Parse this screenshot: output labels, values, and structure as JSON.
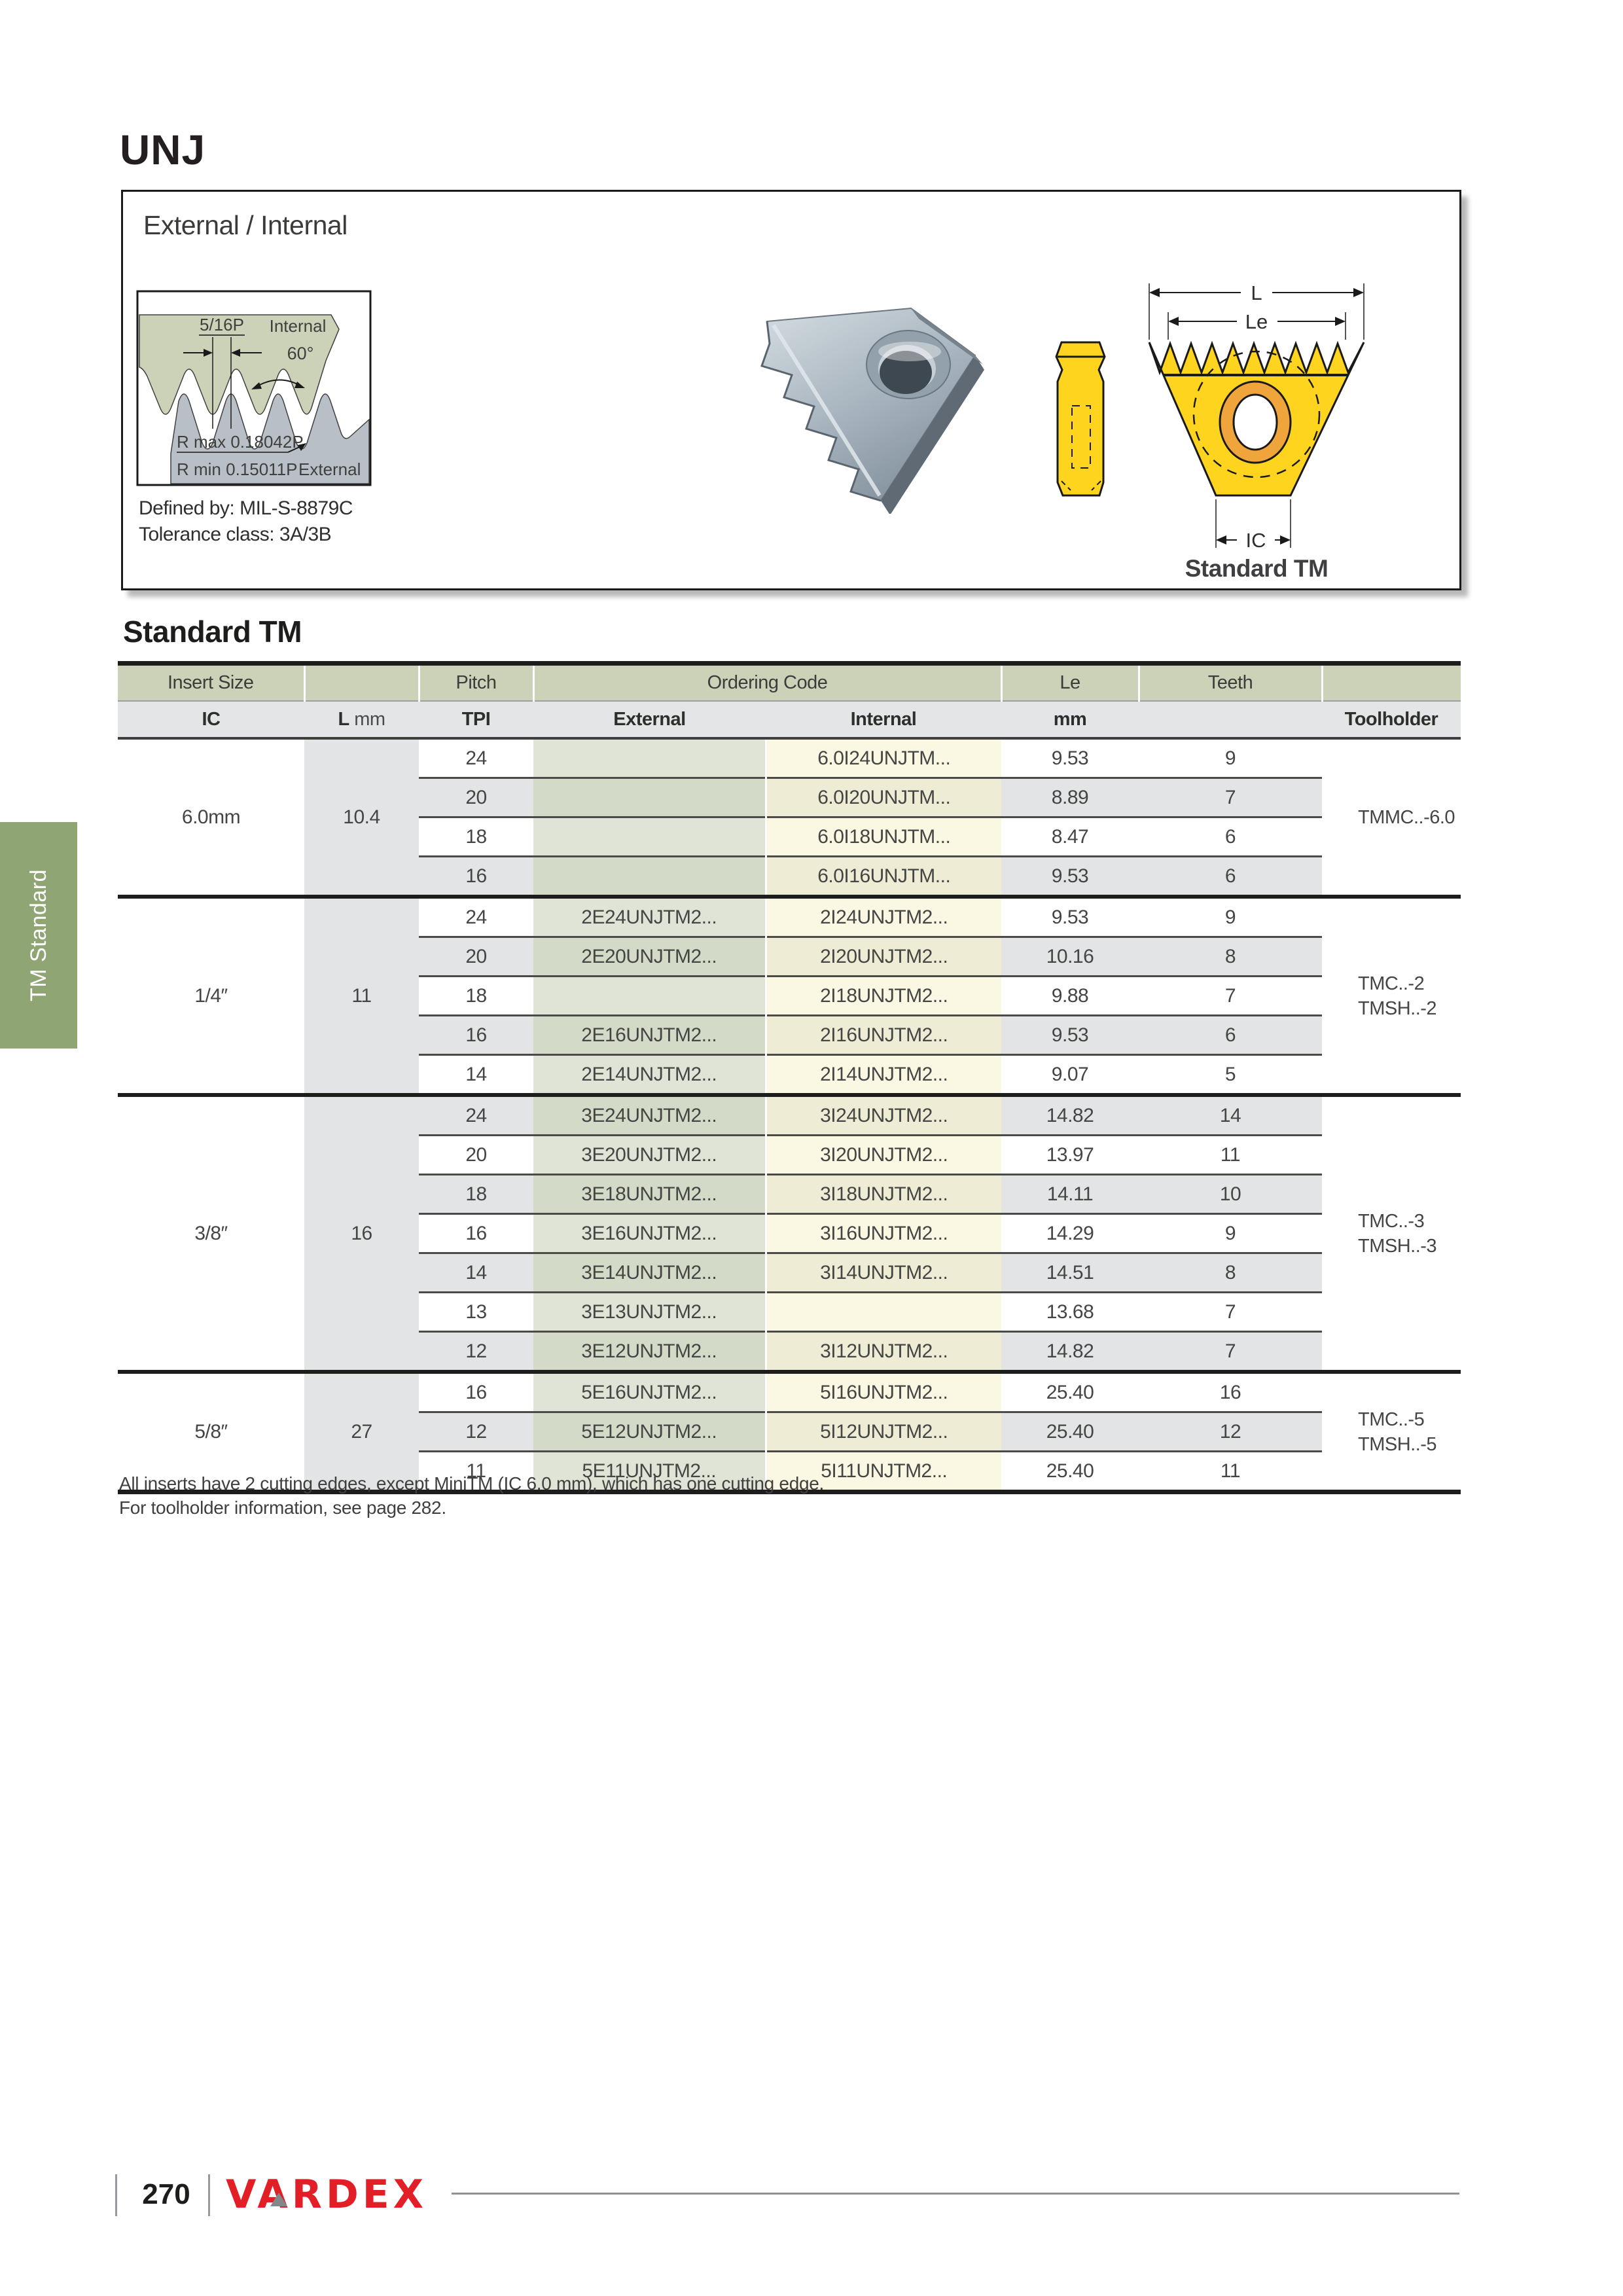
{
  "page": {
    "title": "UNJ"
  },
  "sidebar_tab": "TM Standard",
  "top_box": {
    "heading": "External / Internal",
    "defined_by": "Defined by: MIL-S-8879C",
    "tolerance": "Tolerance class: 3A/3B",
    "figure_label": "Standard TM",
    "drawing_labels": {
      "pitch": "5/16P",
      "internal": "Internal",
      "angle": "60°",
      "rmax": "R max 0.18042P",
      "rmin": "R min 0.15011P",
      "external": "External"
    },
    "dims": {
      "l": "L",
      "le": "Le",
      "ic": "IC"
    }
  },
  "section_title": "Standard TM",
  "table": {
    "header1": {
      "insert_size": "Insert Size",
      "pitch": "Pitch",
      "ordering_code": "Ordering Code",
      "le": "Le",
      "teeth": "Teeth"
    },
    "header2": {
      "ic": "IC",
      "l": "L",
      "l_unit": "mm",
      "tpi": "TPI",
      "external": "External",
      "internal": "Internal",
      "mm": "mm",
      "toolholder": "Toolholder"
    },
    "groups": [
      {
        "ic": "6.0mm",
        "l": "10.4",
        "toolholder": [
          "TMMC..-6.0"
        ],
        "rows": [
          {
            "tpi": "24",
            "external": "",
            "internal": "6.0I24UNJTM...",
            "le": "9.53",
            "teeth": "9"
          },
          {
            "tpi": "20",
            "external": "",
            "internal": "6.0I20UNJTM...",
            "le": "8.89",
            "teeth": "7"
          },
          {
            "tpi": "18",
            "external": "",
            "internal": "6.0I18UNJTM...",
            "le": "8.47",
            "teeth": "6"
          },
          {
            "tpi": "16",
            "external": "",
            "internal": "6.0I16UNJTM...",
            "le": "9.53",
            "teeth": "6"
          }
        ]
      },
      {
        "ic": "1/4″",
        "l": "11",
        "toolholder": [
          "TMC..-2",
          "TMSH..-2"
        ],
        "rows": [
          {
            "tpi": "24",
            "external": "2E24UNJTM2...",
            "internal": "2I24UNJTM2...",
            "le": "9.53",
            "teeth": "9"
          },
          {
            "tpi": "20",
            "external": "2E20UNJTM2...",
            "internal": "2I20UNJTM2...",
            "le": "10.16",
            "teeth": "8"
          },
          {
            "tpi": "18",
            "external": "",
            "internal": "2I18UNJTM2...",
            "le": "9.88",
            "teeth": "7"
          },
          {
            "tpi": "16",
            "external": "2E16UNJTM2...",
            "internal": "2I16UNJTM2...",
            "le": "9.53",
            "teeth": "6"
          },
          {
            "tpi": "14",
            "external": "2E14UNJTM2...",
            "internal": "2I14UNJTM2...",
            "le": "9.07",
            "teeth": "5"
          }
        ]
      },
      {
        "ic": "3/8″",
        "l": "16",
        "toolholder": [
          "TMC..-3",
          "TMSH..-3"
        ],
        "rows": [
          {
            "tpi": "24",
            "external": "3E24UNJTM2...",
            "internal": "3I24UNJTM2...",
            "le": "14.82",
            "teeth": "14"
          },
          {
            "tpi": "20",
            "external": "3E20UNJTM2...",
            "internal": "3I20UNJTM2...",
            "le": "13.97",
            "teeth": "11"
          },
          {
            "tpi": "18",
            "external": "3E18UNJTM2...",
            "internal": "3I18UNJTM2...",
            "le": "14.11",
            "teeth": "10"
          },
          {
            "tpi": "16",
            "external": "3E16UNJTM2...",
            "internal": "3I16UNJTM2...",
            "le": "14.29",
            "teeth": "9"
          },
          {
            "tpi": "14",
            "external": "3E14UNJTM2...",
            "internal": "3I14UNJTM2...",
            "le": "14.51",
            "teeth": "8"
          },
          {
            "tpi": "13",
            "external": "3E13UNJTM2...",
            "internal": "",
            "le": "13.68",
            "teeth": "7"
          },
          {
            "tpi": "12",
            "external": "3E12UNJTM2...",
            "internal": "3I12UNJTM2...",
            "le": "14.82",
            "teeth": "7"
          }
        ]
      },
      {
        "ic": "5/8″",
        "l": "27",
        "toolholder": [
          "TMC..-5",
          "TMSH..-5"
        ],
        "rows": [
          {
            "tpi": "16",
            "external": "5E16UNJTM2...",
            "internal": "5I16UNJTM2...",
            "le": "25.40",
            "teeth": "16"
          },
          {
            "tpi": "12",
            "external": "5E12UNJTM2...",
            "internal": "5I12UNJTM2...",
            "le": "25.40",
            "teeth": "12"
          },
          {
            "tpi": "11",
            "external": "5E11UNJTM2...",
            "internal": "5I11UNJTM2...",
            "le": "25.40",
            "teeth": "11"
          }
        ]
      }
    ]
  },
  "notes": [
    "All inserts have 2 cutting edges, except MiniTM (IC 6.0 mm), which has one cutting edge.",
    "For toolholder information, see page 282."
  ],
  "footer": {
    "page_number": "270",
    "brand": "VARDEX"
  },
  "colors": {
    "header_sage": "#ccd2b8",
    "header_gray": "#e3e5e7",
    "row_gray": "#e3e4e6",
    "external_col": "#dfe4d6",
    "internal_col": "#faf7e2",
    "sidebar_green": "#8fa573",
    "brand_red": "#e21e26",
    "insert_yellow": "#ffd41e",
    "ring_orange": "#f0a43c"
  }
}
